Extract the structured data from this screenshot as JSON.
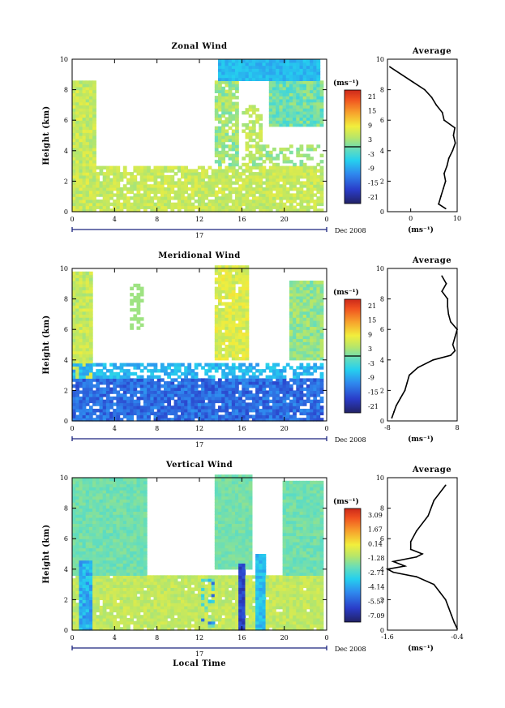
{
  "chart_data": [
    {
      "type": "heatmap",
      "title": "Zonal Wind",
      "ylabel": "Height (km)",
      "xlabel": "",
      "xlim": [
        0,
        24
      ],
      "ylim": [
        0,
        10
      ],
      "x_ticks": [
        "0",
        "4",
        "8",
        "12",
        "16",
        "20",
        "0"
      ],
      "y_ticks": [
        "0",
        "2",
        "4",
        "6",
        "8",
        "10"
      ],
      "day_label": "17",
      "month_label": "Dec 2008",
      "colorbar": {
        "unit": "(ms⁻¹)",
        "labels": [
          "21",
          "15",
          "9",
          "3",
          "-3",
          "-9",
          "-15",
          "-21"
        ],
        "range": [
          -24,
          24
        ]
      },
      "profile": {
        "title": "Average",
        "xlim": [
          -5,
          10
        ],
        "x_ticks": [
          "0",
          "10"
        ],
        "xlabel": "(ms⁻¹)",
        "heights": [
          0.2,
          0.5,
          1,
          1.5,
          2,
          2.5,
          3,
          3.5,
          4,
          4.5,
          5,
          5.5,
          6,
          6.5,
          7,
          7.5,
          8,
          8.5,
          9,
          9.5
        ],
        "values": [
          7.5,
          6,
          6.5,
          7,
          7.5,
          7.2,
          7.8,
          8.2,
          9,
          9.6,
          9.2,
          9.5,
          7.2,
          6.8,
          5.5,
          4.5,
          3,
          0.5,
          -2,
          -4.5
        ]
      }
    },
    {
      "type": "heatmap",
      "title": "Meridional Wind",
      "ylabel": "Height (km)",
      "xlabel": "",
      "xlim": [
        0,
        24
      ],
      "ylim": [
        0,
        10
      ],
      "x_ticks": [
        "0",
        "4",
        "8",
        "12",
        "16",
        "20",
        "0"
      ],
      "y_ticks": [
        "0",
        "2",
        "4",
        "6",
        "8",
        "10"
      ],
      "day_label": "17",
      "month_label": "Dec 2008",
      "colorbar": {
        "unit": "(ms⁻¹)",
        "labels": [
          "21",
          "15",
          "9",
          "3",
          "-3",
          "-9",
          "-15",
          "-21"
        ],
        "range": [
          -24,
          24
        ]
      },
      "profile": {
        "title": "Average",
        "xlim": [
          -8,
          8
        ],
        "x_ticks": [
          "-8",
          "8"
        ],
        "xlabel": "(ms⁻¹)",
        "heights": [
          0.2,
          0.6,
          1,
          1.5,
          2,
          2.5,
          3,
          3.5,
          4,
          4.3,
          4.6,
          5,
          5.5,
          6,
          6.5,
          7,
          7.5,
          8,
          8.5,
          9,
          9.5
        ],
        "values": [
          -7,
          -6.5,
          -6,
          -5,
          -4,
          -3.5,
          -3,
          -1,
          2.5,
          6.5,
          7.5,
          7,
          7.5,
          8,
          6.5,
          6,
          5.8,
          5.8,
          4.5,
          5.5,
          4.5
        ]
      }
    },
    {
      "type": "heatmap",
      "title": "Vertical Wind",
      "ylabel": "Height (km)",
      "xlabel": "Local Time",
      "xlim": [
        0,
        24
      ],
      "ylim": [
        0,
        10
      ],
      "x_ticks": [
        "0",
        "4",
        "8",
        "12",
        "16",
        "20",
        "0"
      ],
      "y_ticks": [
        "0",
        "2",
        "4",
        "6",
        "8",
        "10"
      ],
      "day_label": "17",
      "month_label": "Dec 2008",
      "colorbar": {
        "unit": "(ms⁻¹)",
        "labels": [
          "3.09",
          "1.67",
          "0.14",
          "-1.28",
          "-2.71",
          "-4.14",
          "-5.57",
          "-7.09"
        ],
        "range": [
          -8,
          4
        ]
      },
      "profile": {
        "title": "Average",
        "xlim": [
          -1.6,
          -0.4
        ],
        "x_ticks": [
          "-1.6",
          "-0.4"
        ],
        "xlabel": "(ms⁻¹)",
        "heights": [
          0.1,
          0.5,
          1,
          1.5,
          2,
          2.5,
          3,
          3.5,
          3.8,
          4,
          4.2,
          4.5,
          4.8,
          5,
          5.3,
          5.8,
          6.5,
          7.5,
          8.5,
          9.5
        ],
        "values": [
          -0.4,
          -0.45,
          -0.5,
          -0.55,
          -0.6,
          -0.7,
          -0.8,
          -1.1,
          -1.5,
          -1.6,
          -1.3,
          -1.5,
          -1.1,
          -1.0,
          -1.2,
          -1.2,
          -1.1,
          -0.9,
          -0.8,
          -0.6
        ]
      }
    }
  ]
}
